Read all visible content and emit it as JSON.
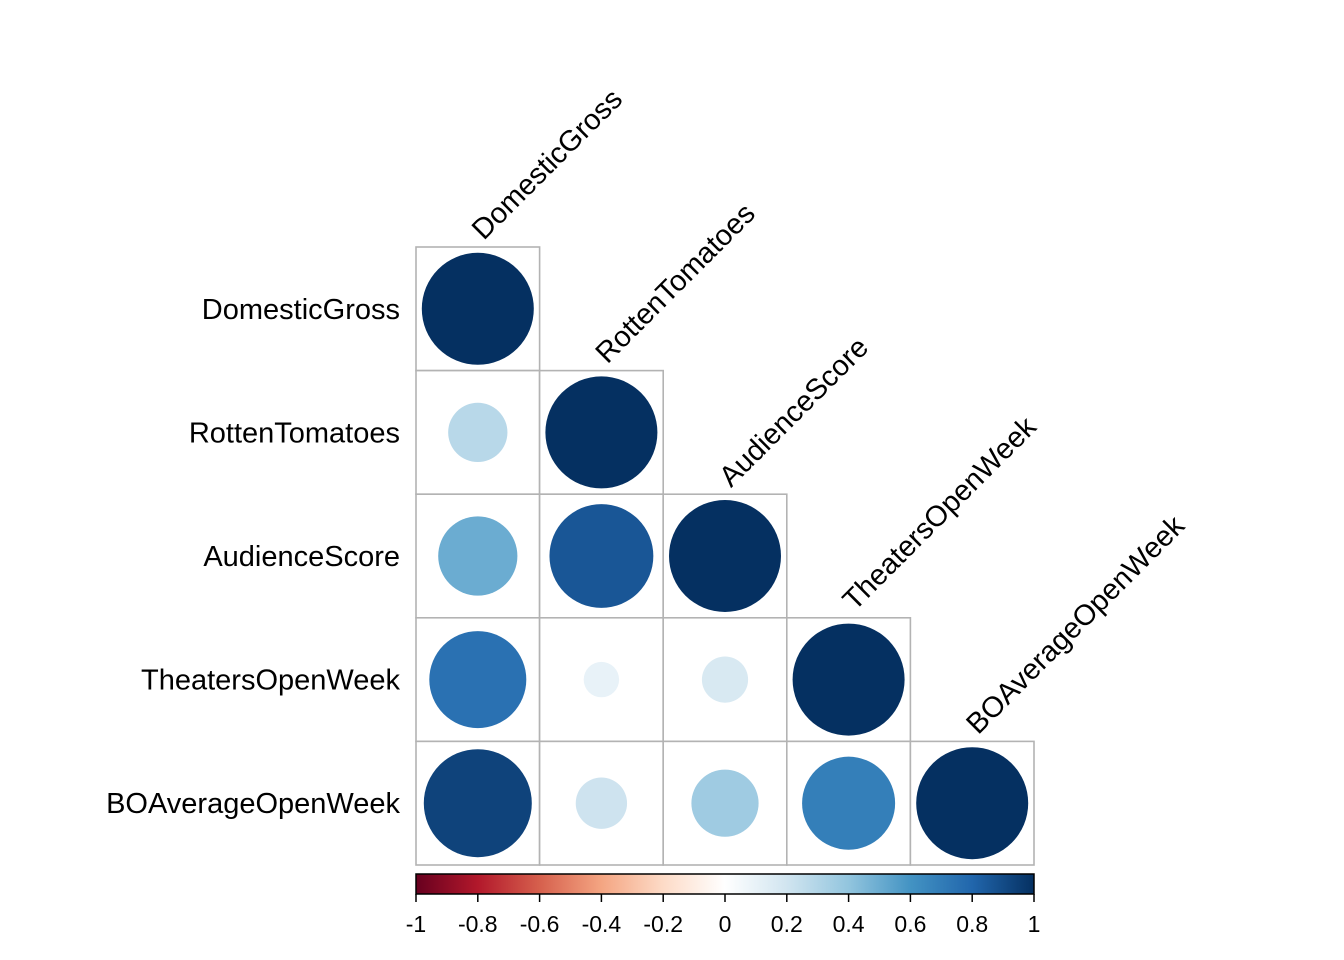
{
  "chart_data": {
    "type": "heatmap",
    "variables": [
      "DomesticGross",
      "RottenTomatoes",
      "AudienceScore",
      "TheatersOpenWeek",
      "BOAverageOpenWeek"
    ],
    "matrix_shape": "lower-triangular",
    "glyph": "circle",
    "correlations": [
      [
        1.0
      ],
      [
        0.28,
        1.0
      ],
      [
        0.5,
        0.86,
        1.0
      ],
      [
        0.75,
        0.1,
        0.17,
        1.0
      ],
      [
        0.93,
        0.21,
        0.36,
        0.69,
        1.0
      ]
    ],
    "colorbar": {
      "ticks": [
        "-1",
        "-0.8",
        "-0.6",
        "-0.4",
        "-0.2",
        "0",
        "0.2",
        "0.4",
        "0.6",
        "0.8",
        "1"
      ],
      "range": [
        -1,
        1
      ],
      "colors": [
        "#67001F",
        "#B2182B",
        "#D6604D",
        "#F4A582",
        "#FDDBC7",
        "#FFFFFF",
        "#D1E5F0",
        "#92C5DE",
        "#4393C3",
        "#2166AC",
        "#053061"
      ]
    }
  }
}
